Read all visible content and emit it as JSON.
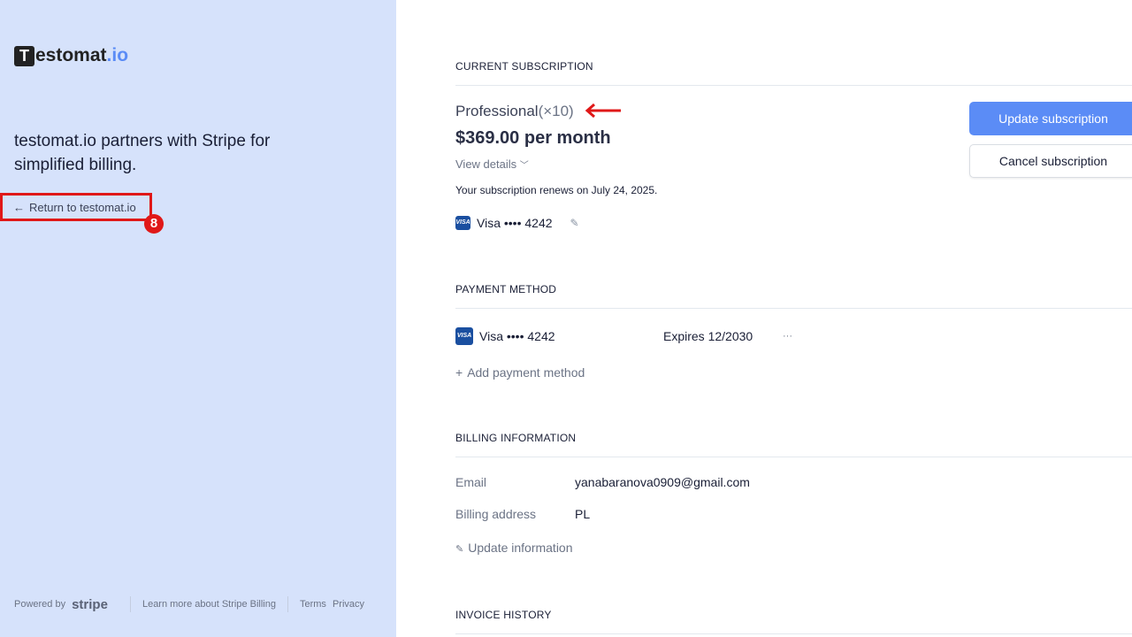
{
  "sidebar": {
    "logo": {
      "mark": "T",
      "name": "estomat",
      "suffix": ".io"
    },
    "tagline": "testomat.io partners with Stripe for simplified billing.",
    "return_link": "Return to testomat.io",
    "annotation_badge": "8",
    "footer": {
      "powered_by": "Powered by",
      "stripe": "stripe",
      "learn_more": "Learn more about Stripe Billing",
      "terms": "Terms",
      "privacy": "Privacy"
    }
  },
  "subscription": {
    "title": "CURRENT SUBSCRIPTION",
    "plan": "Professional",
    "quantity": "(×10)",
    "price": "$369.00 per month",
    "view_details": "View details",
    "renewal": "Your subscription renews on July 24, 2025.",
    "card": {
      "brand": "VISA",
      "label": "Visa •••• 4242"
    },
    "update_button": "Update subscription",
    "cancel_button": "Cancel subscription"
  },
  "payment": {
    "title": "PAYMENT METHOD",
    "card": {
      "brand": "VISA",
      "label": "Visa •••• 4242",
      "expires": "Expires 12/2030"
    },
    "more": "···",
    "add": "Add payment method"
  },
  "billing": {
    "title": "BILLING INFORMATION",
    "email_label": "Email",
    "email": "yanabaranova0909@gmail.com",
    "address_label": "Billing address",
    "address": "PL",
    "update": "Update information"
  },
  "invoices": {
    "title": "INVOICE HISTORY"
  },
  "colors": {
    "accent": "#5b8cf6",
    "sidebar_bg": "#d6e2fb",
    "annotation": "#e01818",
    "visa": "#1a4fa0"
  }
}
